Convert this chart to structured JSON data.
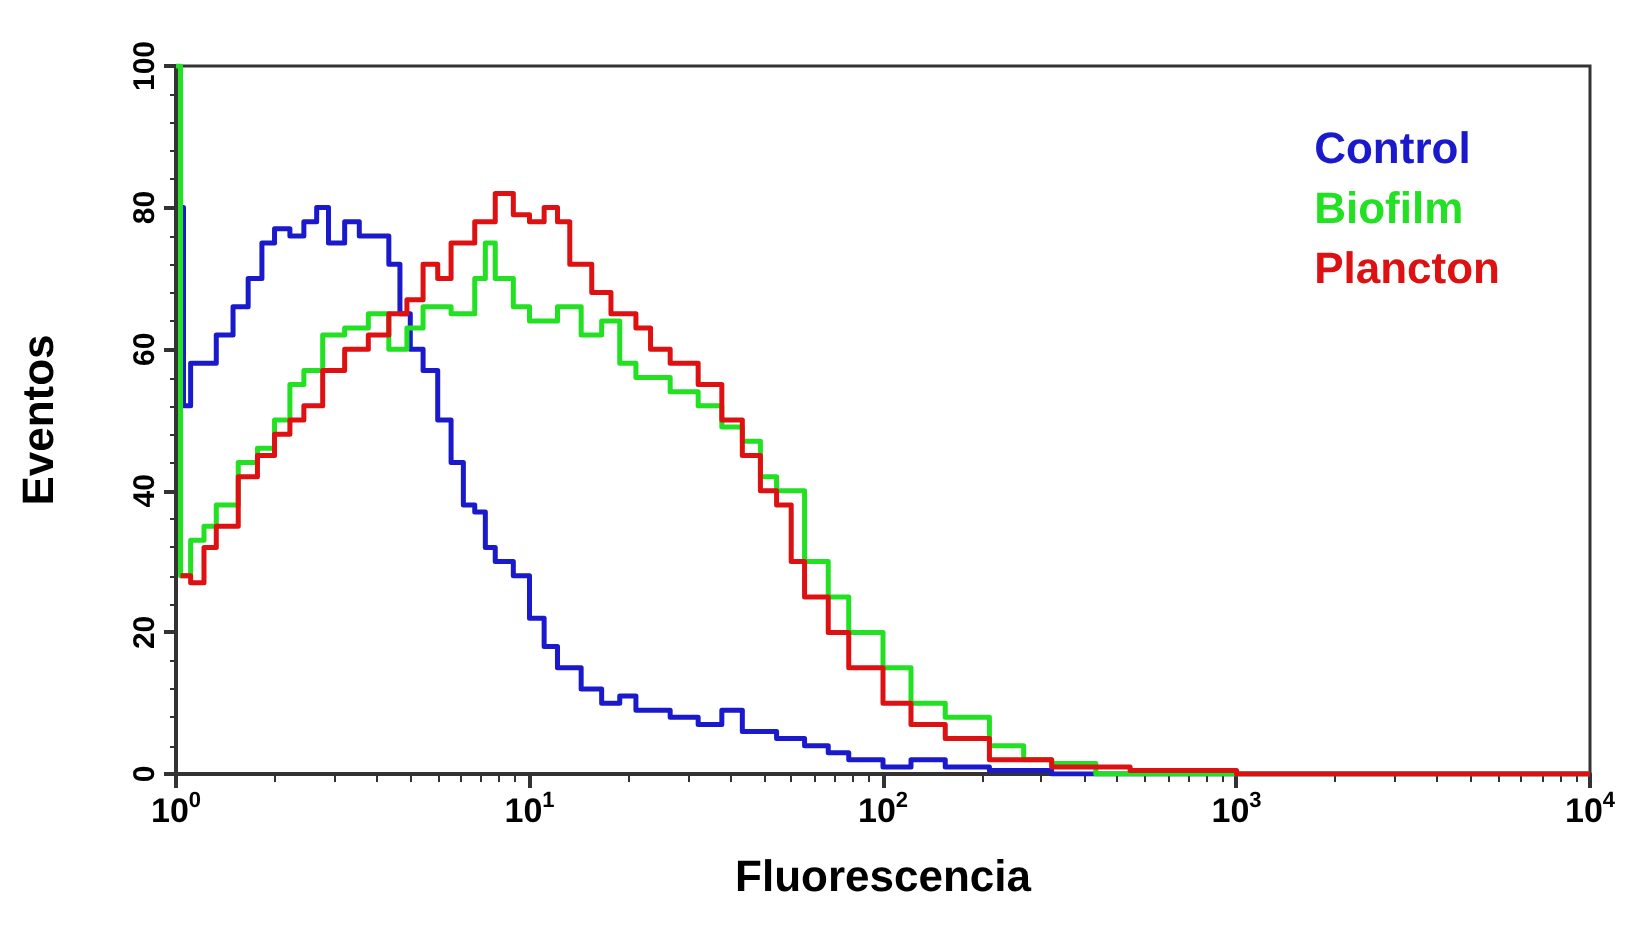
{
  "chart_data": {
    "type": "step",
    "xlabel": "Fluorescencia",
    "ylabel": "Eventos",
    "log": "x",
    "xlim": [
      1,
      10000
    ],
    "ylim": [
      0,
      100
    ],
    "xticks": [
      {
        "value": 1,
        "label": "10$^{0}$"
      },
      {
        "value": 10,
        "label": "10$^{1}$"
      },
      {
        "value": 100,
        "label": "10$^{2}$"
      },
      {
        "value": 1000,
        "label": "10$^{3}$"
      },
      {
        "value": 10000,
        "label": "10$^{4}$"
      }
    ],
    "yticks": [
      0,
      20,
      40,
      60,
      80,
      100
    ],
    "grid": false,
    "legend": "top right",
    "marker": "none",
    "line_style": "solid",
    "series": [
      {
        "name": "Control",
        "color": "#1a1acc",
        "x": [
          1.02,
          1.05,
          1.1,
          1.2,
          1.3,
          1.45,
          1.6,
          1.75,
          1.9,
          2.1,
          2.3,
          2.5,
          2.7,
          3,
          3.3,
          3.7,
          4,
          4.3,
          4.6,
          5,
          5.5,
          6,
          6.5,
          7,
          7.5,
          8,
          9,
          10,
          11,
          12,
          14,
          16,
          18,
          20,
          25,
          30,
          35,
          40,
          50,
          60,
          70,
          80,
          100,
          120,
          150,
          200,
          300,
          1000,
          10000
        ],
        "values": [
          80,
          52,
          58,
          58,
          62,
          66,
          70,
          75,
          77,
          76,
          78,
          80,
          75,
          78,
          76,
          76,
          72,
          65,
          60,
          57,
          50,
          44,
          38,
          37,
          32,
          30,
          28,
          22,
          18,
          15,
          12,
          10,
          11,
          9,
          8,
          7,
          9,
          6,
          5,
          4,
          3,
          2,
          1,
          2,
          1,
          0.5,
          0,
          0,
          0
        ]
      },
      {
        "name": "Biofilm",
        "color": "#22e022",
        "x": [
          1,
          1.03,
          1.1,
          1.2,
          1.3,
          1.5,
          1.7,
          1.9,
          2.1,
          2.3,
          2.6,
          3,
          3.5,
          4,
          4.5,
          5,
          6,
          7,
          7.5,
          8,
          9,
          10,
          12,
          14,
          16,
          18,
          20,
          25,
          30,
          35,
          40,
          45,
          50,
          60,
          70,
          80,
          100,
          120,
          150,
          200,
          250,
          300,
          400,
          10000
        ],
        "values": [
          100,
          28,
          33,
          35,
          38,
          44,
          46,
          50,
          55,
          57,
          62,
          63,
          65,
          60,
          63,
          66,
          65,
          70,
          75,
          70,
          66,
          64,
          66,
          62,
          64,
          58,
          56,
          54,
          52,
          49,
          47,
          42,
          40,
          30,
          25,
          20,
          15,
          10,
          8,
          4,
          2,
          1.5,
          0,
          0
        ]
      },
      {
        "name": "Plancton",
        "color": "#dd1111",
        "x": [
          1.03,
          1.1,
          1.2,
          1.3,
          1.5,
          1.7,
          1.9,
          2.1,
          2.3,
          2.6,
          3,
          3.5,
          4,
          4.5,
          5,
          5.5,
          6,
          7,
          8,
          9,
          10,
          11,
          12,
          13,
          15,
          17,
          20,
          22,
          25,
          30,
          35,
          40,
          45,
          50,
          55,
          60,
          70,
          80,
          100,
          120,
          150,
          200,
          300,
          500,
          1000,
          10000
        ],
        "values": [
          28,
          27,
          32,
          35,
          42,
          45,
          48,
          50,
          52,
          57,
          60,
          62,
          65,
          67,
          72,
          70,
          75,
          78,
          82,
          79,
          78,
          80,
          78,
          72,
          68,
          65,
          63,
          60,
          58,
          55,
          50,
          45,
          40,
          38,
          30,
          25,
          20,
          15,
          10,
          7,
          5,
          2,
          1,
          0.5,
          0,
          0
        ]
      }
    ]
  }
}
